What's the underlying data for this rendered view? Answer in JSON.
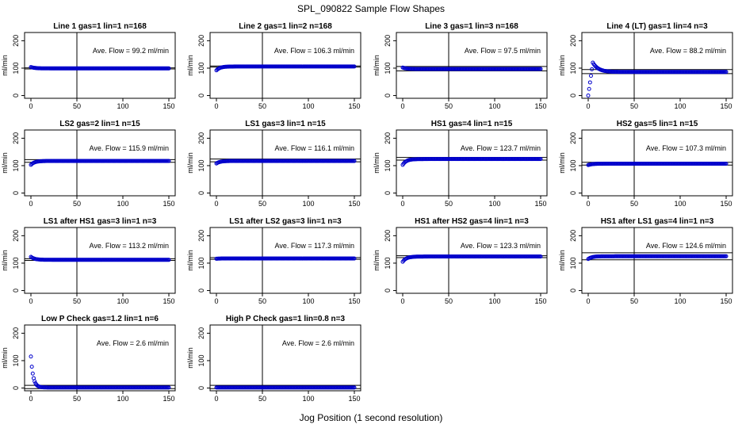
{
  "title": "SPL_090822  Sample Flow Shapes",
  "xlabel": "Jog Position (1 second resolution)",
  "chart_data": [
    {
      "type": "scatter",
      "title": "Line 1 gas=1 lin=1 n=168",
      "ylabel": "ml/min",
      "xlim": [
        0,
        150
      ],
      "ylim": [
        -10,
        230
      ],
      "xticks": [
        0,
        50,
        100,
        150
      ],
      "yticks": [
        0,
        100,
        200
      ],
      "vline": 50,
      "hlines": [
        97,
        101
      ],
      "annotation": "Ave. Flow =  99.2  ml/min",
      "shape": {
        "kind": "flat",
        "start": 104,
        "end": 99
      }
    },
    {
      "type": "scatter",
      "title": "Line 2 gas=1 lin=2 n=168",
      "ylabel": "ml/min",
      "xlim": [
        0,
        150
      ],
      "ylim": [
        -10,
        230
      ],
      "xticks": [
        0,
        50,
        100,
        150
      ],
      "yticks": [
        0,
        100,
        200
      ],
      "vline": 50,
      "hlines": [
        104,
        108
      ],
      "annotation": "Ave. Flow =  106.3  ml/min",
      "shape": {
        "kind": "rise",
        "start": 92,
        "end": 106
      }
    },
    {
      "type": "scatter",
      "title": "Line 3 gas=1 lin=3 n=168",
      "ylabel": "ml/min",
      "xlim": [
        0,
        150
      ],
      "ylim": [
        -10,
        230
      ],
      "xticks": [
        0,
        50,
        100,
        150
      ],
      "yticks": [
        0,
        100,
        200
      ],
      "vline": 50,
      "hlines": [
        90,
        106
      ],
      "annotation": "Ave. Flow =  97.5  ml/min",
      "shape": {
        "kind": "flat",
        "start": 102,
        "end": 97
      }
    },
    {
      "type": "scatter",
      "title": "Line 4 (LT) gas=1 lin=4 n=3",
      "ylabel": "ml/min",
      "xlim": [
        0,
        150
      ],
      "ylim": [
        -10,
        230
      ],
      "xticks": [
        0,
        50,
        100,
        150
      ],
      "yticks": [
        0,
        100,
        200
      ],
      "vline": 50,
      "hlines": [
        80,
        95
      ],
      "annotation": "Ave. Flow =  88.2  ml/min",
      "shape": {
        "kind": "overshoot",
        "start": 0,
        "peak": 120,
        "end": 86
      }
    },
    {
      "type": "scatter",
      "title": "LS2 gas=2 lin=1 n=15",
      "ylabel": "ml/min",
      "xlim": [
        0,
        150
      ],
      "ylim": [
        -10,
        230
      ],
      "xticks": [
        0,
        50,
        100,
        150
      ],
      "yticks": [
        0,
        100,
        200
      ],
      "vline": 50,
      "hlines": [
        112,
        122
      ],
      "annotation": "Ave. Flow =  115.9  ml/min",
      "shape": {
        "kind": "rise",
        "start": 103,
        "end": 117
      }
    },
    {
      "type": "scatter",
      "title": "LS1 gas=3 lin=1 n=15",
      "ylabel": "ml/min",
      "xlim": [
        0,
        150
      ],
      "ylim": [
        -10,
        230
      ],
      "xticks": [
        0,
        50,
        100,
        150
      ],
      "yticks": [
        0,
        100,
        200
      ],
      "vline": 50,
      "hlines": [
        114,
        124
      ],
      "annotation": "Ave. Flow =  116.1  ml/min",
      "shape": {
        "kind": "rise",
        "start": 108,
        "end": 117
      }
    },
    {
      "type": "scatter",
      "title": "HS1 gas=4 lin=1 n=15",
      "ylabel": "ml/min",
      "xlim": [
        0,
        150
      ],
      "ylim": [
        -10,
        230
      ],
      "xticks": [
        0,
        50,
        100,
        150
      ],
      "yticks": [
        0,
        100,
        200
      ],
      "vline": 50,
      "hlines": [
        120,
        130
      ],
      "annotation": "Ave. Flow =  123.7  ml/min",
      "shape": {
        "kind": "rise",
        "start": 103,
        "end": 124
      }
    },
    {
      "type": "scatter",
      "title": "HS2 gas=5 lin=1 n=15",
      "ylabel": "ml/min",
      "xlim": [
        0,
        150
      ],
      "ylim": [
        -10,
        230
      ],
      "xticks": [
        0,
        50,
        100,
        150
      ],
      "yticks": [
        0,
        100,
        200
      ],
      "vline": 50,
      "hlines": [
        102,
        112
      ],
      "annotation": "Ave. Flow =  107.3  ml/min",
      "shape": {
        "kind": "rise",
        "start": 102,
        "end": 107
      }
    },
    {
      "type": "scatter",
      "title": "LS1 after HS1 gas=3 lin=1 n=3",
      "ylabel": "ml/min",
      "xlim": [
        0,
        150
      ],
      "ylim": [
        -10,
        230
      ],
      "xticks": [
        0,
        50,
        100,
        150
      ],
      "yticks": [
        0,
        100,
        200
      ],
      "vline": 50,
      "hlines": [
        110,
        116
      ],
      "annotation": "Ave. Flow =  113.2  ml/min",
      "shape": {
        "kind": "fall",
        "start": 123,
        "end": 112
      }
    },
    {
      "type": "scatter",
      "title": "LS1 after LS2 gas=3 lin=1 n=3",
      "ylabel": "ml/min",
      "xlim": [
        0,
        150
      ],
      "ylim": [
        -10,
        230
      ],
      "xticks": [
        0,
        50,
        100,
        150
      ],
      "yticks": [
        0,
        100,
        200
      ],
      "vline": 50,
      "hlines": [
        114,
        120
      ],
      "annotation": "Ave. Flow =  117.3  ml/min",
      "shape": {
        "kind": "flat",
        "start": 116,
        "end": 117
      }
    },
    {
      "type": "scatter",
      "title": "HS1 after HS2 gas=4 lin=1 n=3",
      "ylabel": "ml/min",
      "xlim": [
        0,
        150
      ],
      "ylim": [
        -10,
        230
      ],
      "xticks": [
        0,
        50,
        100,
        150
      ],
      "yticks": [
        0,
        100,
        200
      ],
      "vline": 50,
      "hlines": [
        120,
        127
      ],
      "annotation": "Ave. Flow =  123.3  ml/min",
      "shape": {
        "kind": "rise",
        "start": 105,
        "end": 124
      }
    },
    {
      "type": "scatter",
      "title": "HS1 after LS1 gas=4 lin=1 n=3",
      "ylabel": "ml/min",
      "xlim": [
        0,
        150
      ],
      "ylim": [
        -10,
        230
      ],
      "xticks": [
        0,
        50,
        100,
        150
      ],
      "yticks": [
        0,
        100,
        200
      ],
      "vline": 50,
      "hlines": [
        112,
        138
      ],
      "annotation": "Ave. Flow =  124.6  ml/min",
      "shape": {
        "kind": "rise",
        "start": 115,
        "end": 125
      }
    },
    {
      "type": "scatter",
      "title": "Low P Check gas=1.2 lin=1 n=6",
      "ylabel": "ml/min",
      "xlim": [
        0,
        150
      ],
      "ylim": [
        -10,
        230
      ],
      "xticks": [
        0,
        50,
        100,
        150
      ],
      "yticks": [
        0,
        100,
        200
      ],
      "vline": 50,
      "hlines": [
        -2,
        10
      ],
      "annotation": "Ave. Flow =  2.6  ml/min",
      "shape": {
        "kind": "decay",
        "start": 115,
        "end": 2
      }
    },
    {
      "type": "scatter",
      "title": "High P Check gas=1 lin=0.8 n=3",
      "ylabel": "ml/min",
      "xlim": [
        0,
        150
      ],
      "ylim": [
        -10,
        230
      ],
      "xticks": [
        0,
        50,
        100,
        150
      ],
      "yticks": [
        0,
        100,
        200
      ],
      "vline": 50,
      "hlines": [
        -2,
        10
      ],
      "annotation": "Ave. Flow =  2.6  ml/min",
      "shape": {
        "kind": "flat",
        "start": 2,
        "end": 2
      }
    }
  ]
}
